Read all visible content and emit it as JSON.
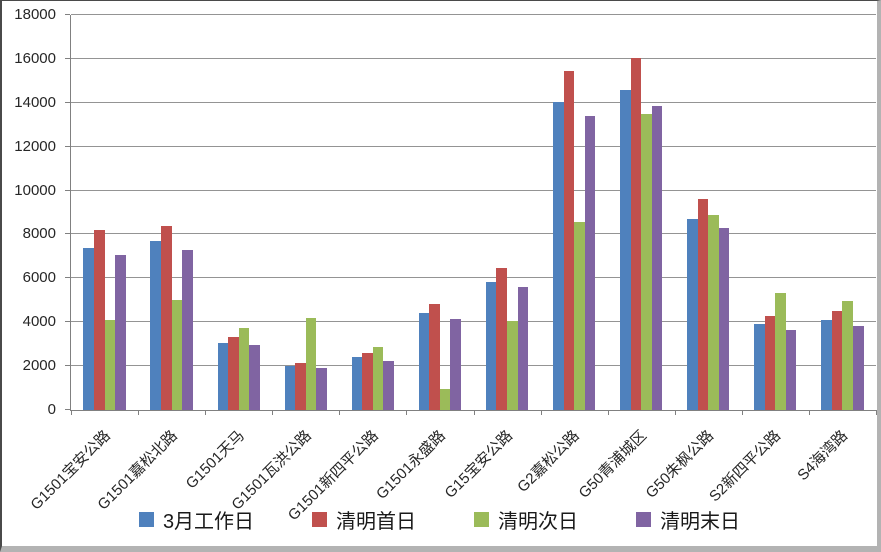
{
  "chart_data": {
    "type": "bar",
    "title": "",
    "xlabel": "",
    "ylabel": "",
    "ylim": [
      0,
      18000
    ],
    "ytick_step": 2000,
    "ytick_labels": [
      "0",
      "2000",
      "4000",
      "6000",
      "8000",
      "10000",
      "12000",
      "14000",
      "16000",
      "18000"
    ],
    "grid": true,
    "legend_position": "bottom",
    "categories": [
      "G1501宝安公路",
      "G1501嘉松北路",
      "G1501天马",
      "G1501瓦洪公路",
      "G1501新四平公路",
      "G1501永盛路",
      "G15宝安公路",
      "G2嘉松公路",
      "G50青浦城区",
      "G50朱枫公路",
      "S2新四平公路",
      "S4海湾路"
    ],
    "series": [
      {
        "name": "3月工作日",
        "color": "#4F81BD",
        "values": [
          7400,
          7700,
          3050,
          2000,
          2400,
          4400,
          5850,
          14050,
          14600,
          8700,
          3900,
          4100
        ]
      },
      {
        "name": "清明首日",
        "color": "#C0504D",
        "values": [
          8200,
          8400,
          3350,
          2150,
          2600,
          4850,
          6450,
          15450,
          16050,
          9600,
          4300,
          4500
        ]
      },
      {
        "name": "清明次日",
        "color": "#9BBB59",
        "values": [
          4100,
          5000,
          3750,
          4200,
          2850,
          950,
          4050,
          8550,
          13500,
          8900,
          5350,
          4950
        ]
      },
      {
        "name": "清明末日",
        "color": "#8064A2",
        "values": [
          7050,
          7300,
          2950,
          1900,
          2250,
          4150,
          5600,
          13400,
          13850,
          8300,
          3650,
          3850
        ]
      }
    ],
    "axis_color": "#808080",
    "gridline_color": "#949494",
    "text_color": "#262626"
  }
}
